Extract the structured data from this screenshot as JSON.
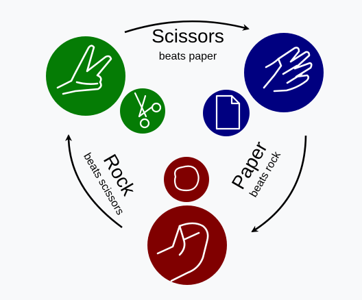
{
  "scissors": {
    "label": "Scissors",
    "caption": "beats paper"
  },
  "paper": {
    "label": "Paper",
    "caption": "beats rock"
  },
  "rock": {
    "label": "Rock",
    "caption": "beats scissors"
  },
  "colors": {
    "scissors": "#057c05",
    "paper": "#000080",
    "rock": "#800000",
    "background": "#f8f9fa",
    "arrow": "#000000",
    "icon_stroke": "#ffffff"
  },
  "icons": {
    "scissors_hand": "v-sign-hand-icon",
    "scissors_object": "scissors-icon",
    "paper_hand": "open-hand-icon",
    "paper_object": "document-icon",
    "rock_hand": "fist-icon",
    "rock_object": "stone-icon"
  }
}
